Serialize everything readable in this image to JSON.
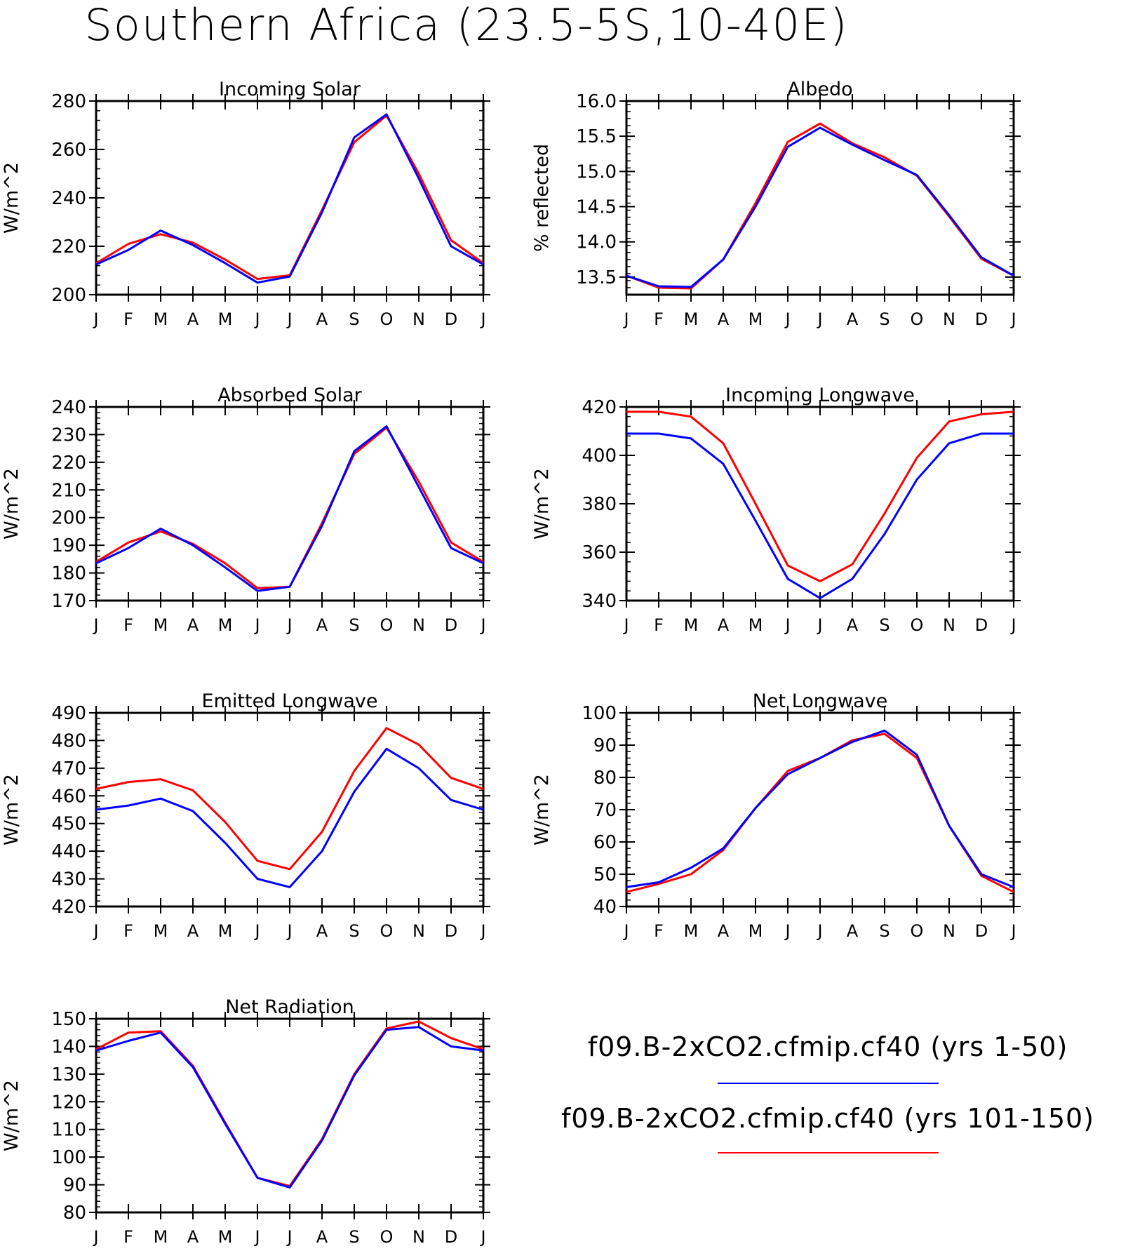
{
  "title": "Southern Africa (23.5-5S,10-40E)",
  "months": [
    "J",
    "F",
    "M",
    "A",
    "M",
    "J",
    "J",
    "A",
    "S",
    "O",
    "N",
    "D",
    "J"
  ],
  "series_meta": [
    {
      "name": "f09.B-2xCO2.cfmip.cf40 (yrs 1-50)",
      "color": "#0000ff"
    },
    {
      "name": "f09.B-2xCO2.cfmip.cf40 (yrs 101-150)",
      "color": "#ff0000"
    }
  ],
  "chart_data": [
    {
      "type": "line",
      "title": "Incoming Solar",
      "ylabel": "W/m^2",
      "ylim": [
        200,
        280
      ],
      "yticks": [
        "200",
        "220",
        "240",
        "260",
        "280"
      ],
      "series": [
        {
          "name": "f09.B-2xCO2.cfmip.cf40 (yrs 1-50)",
          "values": [
            212.5,
            218.5,
            226.5,
            220.5,
            213,
            205,
            207.5,
            234,
            265,
            274.5,
            248,
            220,
            212.5
          ]
        },
        {
          "name": "f09.B-2xCO2.cfmip.cf40 (yrs 101-150)",
          "values": [
            213,
            221,
            225,
            221.5,
            214.5,
            206.5,
            208,
            235,
            263,
            274,
            250,
            222.5,
            213
          ]
        }
      ]
    },
    {
      "type": "line",
      "title": "Albedo",
      "ylabel": "% reflected",
      "ylim": [
        13.25,
        16.0
      ],
      "yticks": [
        "13.5",
        "14.0",
        "14.5",
        "15.0",
        "15.5",
        "16.0"
      ],
      "series": [
        {
          "name": "f09.B-2xCO2.cfmip.cf40 (yrs 1-50)",
          "values": [
            13.52,
            13.37,
            13.36,
            13.75,
            14.5,
            15.35,
            15.62,
            15.38,
            15.16,
            14.95,
            14.38,
            13.78,
            13.52
          ]
        },
        {
          "name": "f09.B-2xCO2.cfmip.cf40 (yrs 101-150)",
          "values": [
            13.52,
            13.35,
            13.34,
            13.75,
            14.55,
            15.42,
            15.68,
            15.4,
            15.2,
            14.94,
            14.36,
            13.76,
            13.52
          ]
        }
      ]
    },
    {
      "type": "line",
      "title": "Absorbed Solar",
      "ylabel": "W/m^2",
      "ylim": [
        170,
        240
      ],
      "yticks": [
        "170",
        "180",
        "190",
        "200",
        "210",
        "220",
        "230",
        "240"
      ],
      "series": [
        {
          "name": "f09.B-2xCO2.cfmip.cf40 (yrs 1-50)",
          "values": [
            183.5,
            189,
            196,
            190,
            182,
            173.5,
            175,
            197,
            224,
            233,
            211,
            189,
            183.5
          ]
        },
        {
          "name": "f09.B-2xCO2.cfmip.cf40 (yrs 101-150)",
          "values": [
            184,
            191,
            195,
            190.5,
            183.5,
            174.5,
            175,
            198,
            223,
            232.5,
            213,
            191,
            184
          ]
        }
      ]
    },
    {
      "type": "line",
      "title": "Incoming Longwave",
      "ylabel": "W/m^2",
      "ylim": [
        340,
        420
      ],
      "yticks": [
        "340",
        "360",
        "380",
        "400",
        "420"
      ],
      "series": [
        {
          "name": "f09.B-2xCO2.cfmip.cf40 (yrs 1-50)",
          "values": [
            409,
            409,
            407,
            396.5,
            373,
            349,
            341,
            349,
            367.5,
            390,
            405,
            409,
            409
          ]
        },
        {
          "name": "f09.B-2xCO2.cfmip.cf40 (yrs 101-150)",
          "values": [
            418,
            418,
            416,
            405,
            380,
            354.5,
            348,
            355,
            376,
            399,
            414,
            417,
            418
          ]
        }
      ]
    },
    {
      "type": "line",
      "title": "Emitted Longwave",
      "ylabel": "W/m^2",
      "ylim": [
        420,
        490
      ],
      "yticks": [
        "420",
        "430",
        "440",
        "450",
        "460",
        "470",
        "480",
        "490"
      ],
      "series": [
        {
          "name": "f09.B-2xCO2.cfmip.cf40 (yrs 1-50)",
          "values": [
            455,
            456.5,
            459,
            454.5,
            443,
            430,
            427,
            440,
            461.5,
            477,
            470,
            458.5,
            455
          ]
        },
        {
          "name": "f09.B-2xCO2.cfmip.cf40 (yrs 101-150)",
          "values": [
            462.5,
            465,
            466,
            462,
            450.5,
            436.5,
            433.5,
            447,
            469,
            484.5,
            478.5,
            466.5,
            462.5
          ]
        }
      ]
    },
    {
      "type": "line",
      "title": "Net Longwave",
      "ylabel": "W/m^2",
      "ylim": [
        40,
        100
      ],
      "yticks": [
        "40",
        "50",
        "60",
        "70",
        "80",
        "90",
        "100"
      ],
      "series": [
        {
          "name": "f09.B-2xCO2.cfmip.cf40 (yrs 1-50)",
          "values": [
            46,
            47.5,
            52,
            58,
            70.5,
            81,
            86,
            91,
            94.5,
            87,
            65,
            50,
            46
          ]
        },
        {
          "name": "f09.B-2xCO2.cfmip.cf40 (yrs 101-150)",
          "values": [
            44.5,
            47,
            50,
            57.5,
            70.5,
            82,
            86,
            91.5,
            93.5,
            86,
            65,
            49.5,
            44.5
          ]
        }
      ]
    },
    {
      "type": "line",
      "title": "Net Radiation",
      "ylabel": "W/m^2",
      "ylim": [
        80,
        150
      ],
      "yticks": [
        "80",
        "90",
        "100",
        "110",
        "120",
        "130",
        "140",
        "150"
      ],
      "series": [
        {
          "name": "f09.B-2xCO2.cfmip.cf40 (yrs 1-50)",
          "values": [
            138.5,
            142,
            145,
            132.5,
            112,
            92.5,
            89,
            106,
            129.5,
            146,
            147,
            140,
            138.5
          ]
        },
        {
          "name": "f09.B-2xCO2.cfmip.cf40 (yrs 101-150)",
          "values": [
            139,
            145,
            145.5,
            133,
            112.5,
            92.5,
            89.5,
            106.5,
            130,
            146.5,
            149,
            143,
            139
          ]
        }
      ]
    }
  ]
}
